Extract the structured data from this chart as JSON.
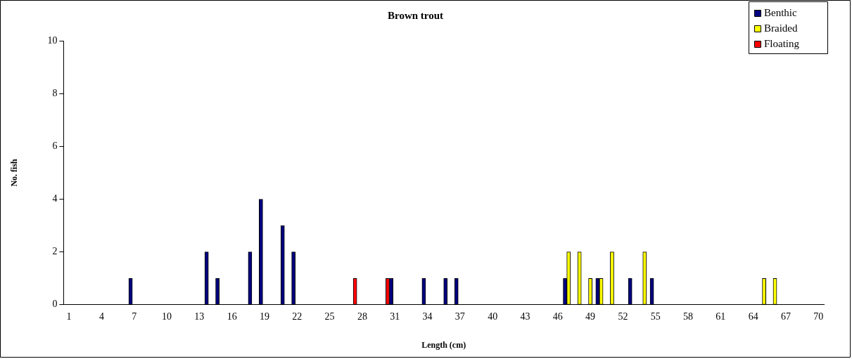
{
  "chart_data": {
    "type": "bar",
    "title": "Brown trout",
    "xlabel": "Length (cm)",
    "ylabel": "No. fish",
    "categories": [
      "1",
      null,
      null,
      "4",
      null,
      null,
      "7",
      null,
      null,
      "10",
      null,
      null,
      "13",
      null,
      null,
      "16",
      null,
      null,
      "19",
      null,
      null,
      "22",
      null,
      null,
      "25",
      null,
      null,
      "28",
      null,
      null,
      "31",
      null,
      null,
      "34",
      null,
      null,
      "37",
      null,
      null,
      "40",
      null,
      null,
      "43",
      null,
      null,
      "46",
      null,
      null,
      "49",
      null,
      null,
      "52",
      null,
      null,
      "55",
      null,
      null,
      "58",
      null,
      null,
      "61",
      null,
      null,
      "64",
      null,
      null,
      "67",
      null,
      null,
      "70"
    ],
    "series": [
      {
        "name": "Benthic",
        "color": "#000080",
        "values": [
          null,
          null,
          null,
          null,
          null,
          null,
          1,
          null,
          null,
          null,
          null,
          null,
          null,
          2,
          1,
          null,
          null,
          2,
          4,
          null,
          3,
          2,
          null,
          null,
          null,
          null,
          null,
          null,
          null,
          null,
          1,
          null,
          null,
          1,
          null,
          1,
          1,
          null,
          null,
          null,
          null,
          null,
          null,
          null,
          null,
          null,
          1,
          null,
          null,
          1,
          null,
          null,
          1,
          null,
          1,
          null,
          null,
          null,
          null,
          null,
          null,
          null,
          null,
          null,
          null,
          null,
          null,
          null,
          null,
          null
        ]
      },
      {
        "name": "Braided",
        "color": "#ffff00",
        "values": [
          null,
          null,
          null,
          null,
          null,
          null,
          null,
          null,
          null,
          null,
          null,
          null,
          null,
          null,
          null,
          null,
          null,
          null,
          null,
          null,
          null,
          null,
          null,
          null,
          null,
          null,
          null,
          null,
          null,
          null,
          null,
          null,
          null,
          null,
          null,
          null,
          null,
          null,
          null,
          null,
          null,
          null,
          null,
          null,
          null,
          null,
          2,
          2,
          1,
          1,
          2,
          null,
          null,
          2,
          null,
          null,
          null,
          null,
          null,
          null,
          null,
          null,
          null,
          null,
          1,
          1,
          null,
          null,
          null,
          null
        ]
      },
      {
        "name": "Floating",
        "color": "#ff0000",
        "values": [
          null,
          null,
          null,
          null,
          null,
          null,
          null,
          null,
          null,
          null,
          null,
          null,
          null,
          null,
          null,
          null,
          null,
          null,
          null,
          null,
          null,
          null,
          null,
          null,
          null,
          null,
          1,
          null,
          null,
          1,
          null,
          null,
          null,
          null,
          null,
          null,
          null,
          null,
          null,
          null,
          null,
          null,
          null,
          null,
          null,
          null,
          null,
          null,
          null,
          null,
          null,
          null,
          null,
          null,
          null,
          null,
          null,
          null,
          null,
          null,
          null,
          null,
          null,
          null,
          null,
          null,
          null,
          null,
          null,
          null
        ]
      }
    ],
    "ylim": [
      0,
      10
    ],
    "yticks": [
      0,
      2,
      4,
      6,
      8,
      10
    ],
    "grid": false,
    "legend": "top right"
  }
}
